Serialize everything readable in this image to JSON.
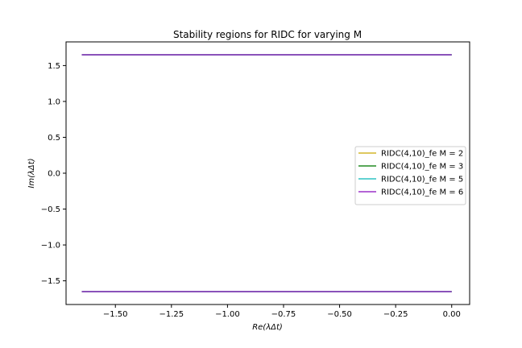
{
  "chart_data": {
    "type": "line",
    "title": "Stability regions for RIDC for varying M",
    "xlabel": "Re(λΔt)",
    "ylabel": "Im(λΔt)",
    "xlim": [
      -1.72,
      0.08
    ],
    "ylim": [
      -1.83,
      1.83
    ],
    "xticks": [
      -1.5,
      -1.25,
      -1.0,
      -0.75,
      -0.5,
      -0.25,
      0.0
    ],
    "xtick_labels": [
      "−1.50",
      "−1.25",
      "−1.00",
      "−0.75",
      "−0.50",
      "−0.25",
      "0.00"
    ],
    "yticks": [
      1.5,
      1.0,
      0.5,
      0.0,
      -0.5,
      -1.0,
      -1.5
    ],
    "ytick_labels": [
      "1.5",
      "1.0",
      "0.5",
      "0.0",
      "−0.5",
      "−1.0",
      "−1.5"
    ],
    "grid": false,
    "legend_position": "center-right",
    "series": [
      {
        "name": "RIDC(4,10)_fe M = 2",
        "color": "#d4b62a",
        "segments": [
          [
            [
              -1.65,
              1.65
            ],
            [
              0.0,
              1.65
            ]
          ],
          [
            [
              -1.65,
              -1.65
            ],
            [
              0.0,
              -1.65
            ]
          ]
        ]
      },
      {
        "name": "RIDC(4,10)_fe M = 3",
        "color": "#228b22",
        "segments": [
          [
            [
              -1.65,
              1.65
            ],
            [
              0.0,
              1.65
            ]
          ],
          [
            [
              -1.65,
              -1.65
            ],
            [
              0.0,
              -1.65
            ]
          ]
        ]
      },
      {
        "name": "RIDC(4,10)_fe M = 5",
        "color": "#2ec4c4",
        "segments": [
          [
            [
              -1.65,
              1.65
            ],
            [
              0.0,
              1.65
            ]
          ],
          [
            [
              -1.65,
              -1.65
            ],
            [
              0.0,
              -1.65
            ]
          ]
        ]
      },
      {
        "name": "RIDC(4,10)_fe M = 6",
        "color": "#9b30c8",
        "segments": [
          [
            [
              -1.65,
              1.65
            ],
            [
              0.0,
              1.65
            ]
          ],
          [
            [
              -1.65,
              -1.65
            ],
            [
              0.0,
              -1.65
            ]
          ]
        ]
      }
    ]
  }
}
